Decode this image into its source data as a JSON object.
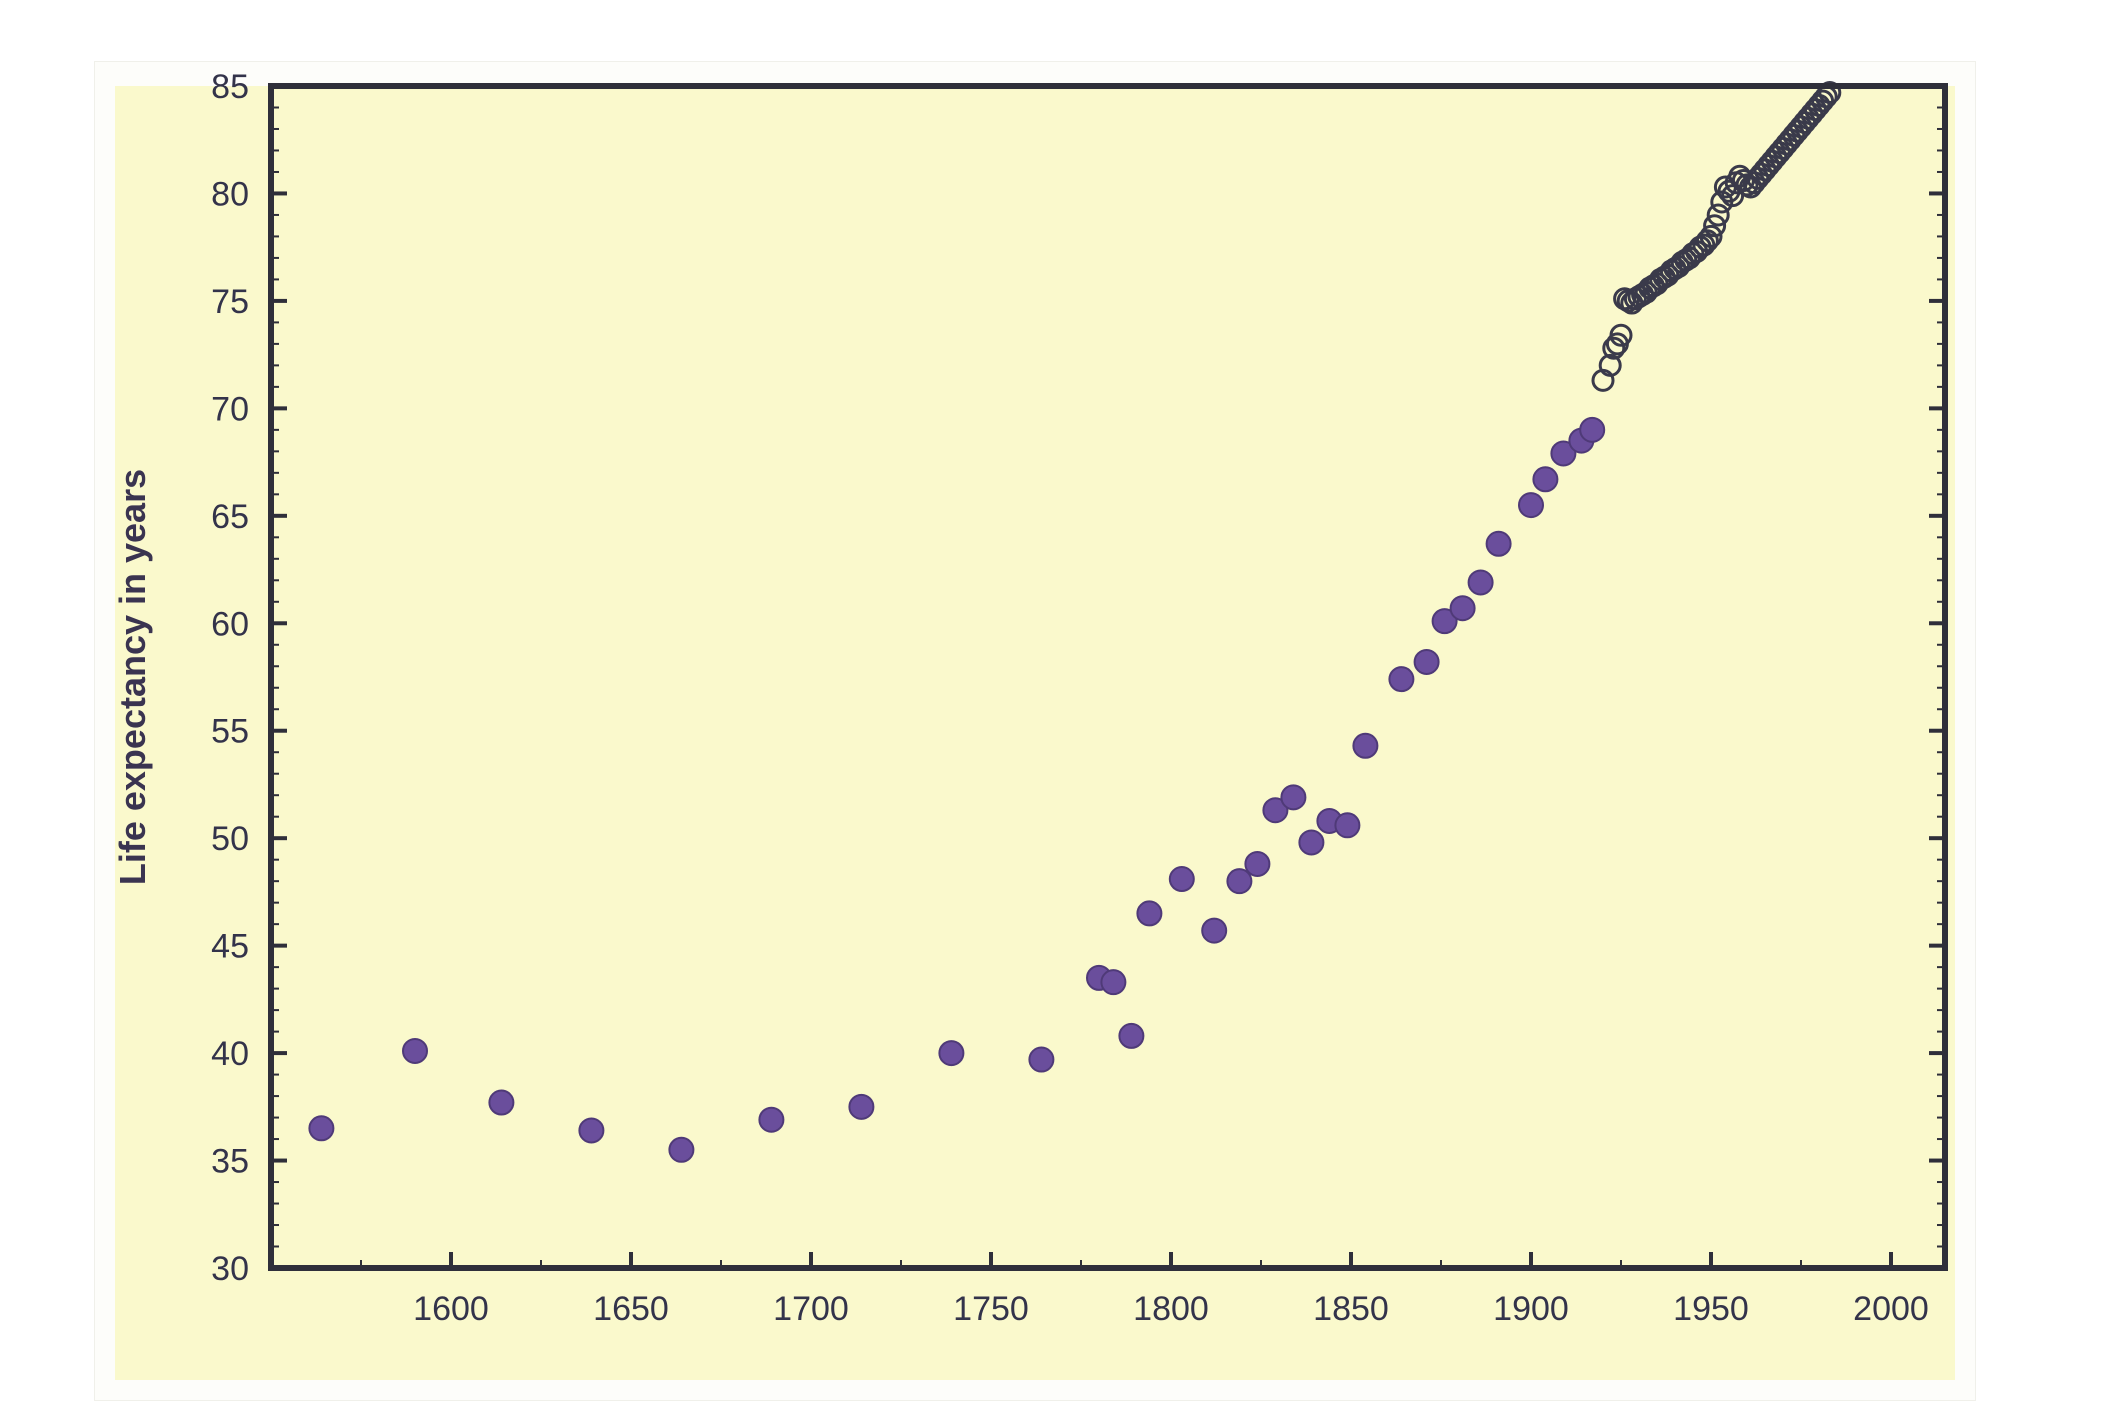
{
  "chart_data": {
    "type": "scatter",
    "title": "",
    "xlabel": "",
    "ylabel": "Life expectancy in years",
    "xlim": [
      1550,
      2015
    ],
    "ylim": [
      30,
      85
    ],
    "x_ticks": [
      1600,
      1650,
      1700,
      1750,
      1800,
      1850,
      1900,
      1950,
      2000
    ],
    "y_ticks": [
      30,
      35,
      40,
      45,
      50,
      55,
      60,
      65,
      70,
      75,
      80,
      85
    ],
    "grid": false,
    "legend": "none",
    "colors": {
      "background": "#faf9cc",
      "filled_marker": "#6a4e9c",
      "hollow_marker_stroke": "#3a3a4a",
      "axis": "#2f2f3a"
    },
    "series": [
      {
        "marker": "filled",
        "points": [
          [
            1564,
            36.5
          ],
          [
            1590,
            40.1
          ],
          [
            1614,
            37.7
          ],
          [
            1639,
            36.4
          ],
          [
            1664,
            35.5
          ],
          [
            1689,
            36.9
          ],
          [
            1714,
            37.5
          ],
          [
            1739,
            40.0
          ],
          [
            1764,
            39.7
          ],
          [
            1780,
            43.5
          ],
          [
            1784,
            43.3
          ],
          [
            1789,
            40.8
          ],
          [
            1794,
            46.5
          ],
          [
            1803,
            48.1
          ],
          [
            1812,
            45.7
          ],
          [
            1819,
            48.0
          ],
          [
            1824,
            48.8
          ],
          [
            1829,
            51.3
          ],
          [
            1834,
            51.9
          ],
          [
            1839,
            49.8
          ],
          [
            1844,
            50.8
          ],
          [
            1849,
            50.6
          ],
          [
            1854,
            54.3
          ],
          [
            1864,
            57.4
          ],
          [
            1871,
            58.2
          ],
          [
            1876,
            60.1
          ],
          [
            1881,
            60.7
          ],
          [
            1886,
            61.9
          ],
          [
            1891,
            63.7
          ],
          [
            1900,
            65.5
          ],
          [
            1904,
            66.7
          ],
          [
            1909,
            67.9
          ],
          [
            1914,
            68.5
          ],
          [
            1917,
            69.0
          ]
        ]
      },
      {
        "marker": "hollow",
        "points": [
          [
            1920,
            71.3
          ],
          [
            1922,
            72.0
          ],
          [
            1923,
            72.8
          ],
          [
            1924,
            73.0
          ],
          [
            1925,
            73.4
          ],
          [
            1926,
            75.1
          ],
          [
            1927,
            75.0
          ],
          [
            1928,
            74.9
          ],
          [
            1929,
            75.1
          ],
          [
            1930,
            75.2
          ],
          [
            1931,
            75.3
          ],
          [
            1932,
            75.4
          ],
          [
            1933,
            75.6
          ],
          [
            1934,
            75.7
          ],
          [
            1935,
            75.8
          ],
          [
            1936,
            76.0
          ],
          [
            1937,
            76.1
          ],
          [
            1938,
            76.2
          ],
          [
            1939,
            76.4
          ],
          [
            1940,
            76.5
          ],
          [
            1941,
            76.6
          ],
          [
            1942,
            76.8
          ],
          [
            1943,
            76.9
          ],
          [
            1944,
            77.0
          ],
          [
            1945,
            77.2
          ],
          [
            1946,
            77.3
          ],
          [
            1947,
            77.5
          ],
          [
            1948,
            77.6
          ],
          [
            1949,
            77.8
          ],
          [
            1950,
            78.0
          ],
          [
            1951,
            78.5
          ],
          [
            1952,
            79.0
          ],
          [
            1953,
            79.6
          ],
          [
            1954,
            80.3
          ],
          [
            1955,
            80.1
          ],
          [
            1956,
            79.9
          ],
          [
            1957,
            80.5
          ],
          [
            1958,
            80.8
          ],
          [
            1959,
            80.6
          ],
          [
            1960,
            80.4
          ],
          [
            1961,
            80.3
          ],
          [
            1962,
            80.5
          ],
          [
            1963,
            80.7
          ],
          [
            1964,
            80.9
          ],
          [
            1965,
            81.1
          ],
          [
            1966,
            81.3
          ],
          [
            1967,
            81.5
          ],
          [
            1968,
            81.7
          ],
          [
            1969,
            81.9
          ],
          [
            1970,
            82.1
          ],
          [
            1971,
            82.3
          ],
          [
            1972,
            82.5
          ],
          [
            1973,
            82.7
          ],
          [
            1974,
            82.9
          ],
          [
            1975,
            83.1
          ],
          [
            1976,
            83.3
          ],
          [
            1977,
            83.5
          ],
          [
            1978,
            83.7
          ],
          [
            1979,
            83.9
          ],
          [
            1980,
            84.1
          ],
          [
            1981,
            84.3
          ],
          [
            1982,
            84.5
          ],
          [
            1983,
            84.7
          ]
        ]
      }
    ]
  }
}
